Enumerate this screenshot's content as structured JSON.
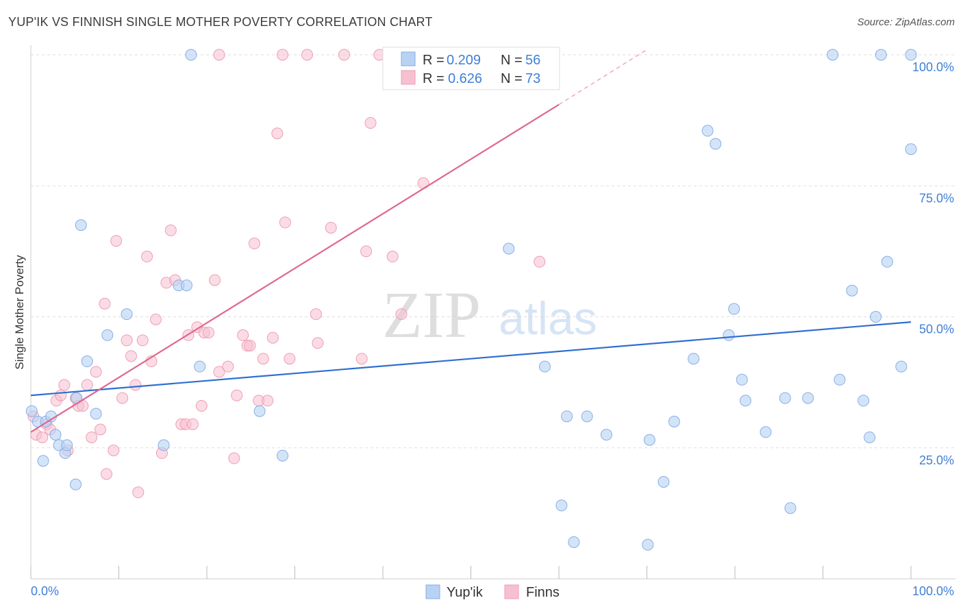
{
  "header": {
    "title": "YUP'IK VS FINNISH SINGLE MOTHER POVERTY CORRELATION CHART",
    "source": "Source: ZipAtlas.com"
  },
  "watermark": {
    "zip": "ZIP",
    "atlas": "atlas"
  },
  "colors": {
    "blue_fill": "#b7d2f3",
    "blue_stroke": "#86aee6",
    "blue_line": "#2f6fcf",
    "pink_fill": "#f7c0d0",
    "pink_stroke": "#ee9db5",
    "pink_line": "#e0678f",
    "axis_text": "#3f7fd6",
    "grid": "#dddddd"
  },
  "legend_top": {
    "rows": [
      {
        "r_label": "R =",
        "r_value": "0.209",
        "n_label": "N =",
        "n_value": "56"
      },
      {
        "r_label": "R =",
        "r_value": "0.626",
        "n_label": "N =",
        "n_value": "73"
      }
    ]
  },
  "chart_data": {
    "type": "scatter",
    "title": "YUP'IK VS FINNISH SINGLE MOTHER POVERTY CORRELATION CHART",
    "xlabel": "",
    "ylabel": "Single Mother Poverty",
    "xlim": [
      0,
      100
    ],
    "ylim": [
      0,
      100
    ],
    "x_tick_labels": [
      "0.0%",
      "100.0%"
    ],
    "y_ticks": [
      25,
      50,
      75,
      100
    ],
    "y_tick_labels": [
      "25.0%",
      "50.0%",
      "75.0%",
      "100.0%"
    ],
    "grid": true,
    "legend_position": "bottom",
    "series": [
      {
        "name": "Yup'ik",
        "color": "#b7d2f3",
        "r": 0.209,
        "n": 56,
        "trend": {
          "x": [
            0,
            100
          ],
          "y": [
            35.0,
            49.0
          ]
        },
        "points": [
          [
            0.1,
            32.0
          ],
          [
            0.8,
            30.0
          ],
          [
            1.4,
            22.5
          ],
          [
            1.7,
            30.0
          ],
          [
            2.3,
            31.0
          ],
          [
            2.8,
            27.5
          ],
          [
            3.2,
            25.5
          ],
          [
            3.9,
            24.0
          ],
          [
            4.1,
            25.5
          ],
          [
            5.1,
            18.0
          ],
          [
            5.2,
            34.5
          ],
          [
            5.7,
            67.5
          ],
          [
            6.4,
            41.5
          ],
          [
            7.4,
            31.5
          ],
          [
            8.7,
            46.5
          ],
          [
            10.9,
            50.5
          ],
          [
            15.1,
            25.5
          ],
          [
            16.8,
            56.0
          ],
          [
            17.7,
            56.0
          ],
          [
            18.2,
            100.0
          ],
          [
            19.2,
            40.5
          ],
          [
            26.0,
            32.0
          ],
          [
            28.6,
            23.5
          ],
          [
            54.3,
            63.0
          ],
          [
            58.4,
            40.5
          ],
          [
            60.3,
            14.0
          ],
          [
            60.9,
            31.0
          ],
          [
            61.7,
            7.0
          ],
          [
            63.2,
            31.0
          ],
          [
            65.4,
            27.5
          ],
          [
            70.1,
            6.5
          ],
          [
            70.3,
            26.5
          ],
          [
            71.9,
            18.5
          ],
          [
            73.1,
            30.0
          ],
          [
            75.3,
            42.0
          ],
          [
            76.9,
            85.5
          ],
          [
            77.8,
            83.0
          ],
          [
            79.3,
            46.5
          ],
          [
            79.9,
            51.5
          ],
          [
            80.8,
            38.0
          ],
          [
            81.2,
            34.0
          ],
          [
            83.5,
            28.0
          ],
          [
            85.7,
            34.5
          ],
          [
            86.3,
            13.5
          ],
          [
            88.3,
            34.5
          ],
          [
            91.1,
            100.0
          ],
          [
            91.9,
            38.0
          ],
          [
            93.3,
            55.0
          ],
          [
            94.6,
            34.0
          ],
          [
            95.3,
            27.0
          ],
          [
            96.0,
            50.0
          ],
          [
            96.6,
            100.0
          ],
          [
            97.3,
            60.5
          ],
          [
            98.9,
            40.5
          ],
          [
            100.0,
            82.0
          ],
          [
            100.0,
            100.0
          ]
        ]
      },
      {
        "name": "Finns",
        "color": "#f7c0d0",
        "r": 0.626,
        "n": 73,
        "trend": {
          "x": [
            0,
            60,
            70
          ],
          "y": [
            28.0,
            90.5,
            101.0
          ]
        },
        "points": [
          [
            0.3,
            31.0
          ],
          [
            0.6,
            27.5
          ],
          [
            1.3,
            27.0
          ],
          [
            1.8,
            29.5
          ],
          [
            2.2,
            28.5
          ],
          [
            2.9,
            34.0
          ],
          [
            3.4,
            35.0
          ],
          [
            3.8,
            37.0
          ],
          [
            4.2,
            24.5
          ],
          [
            5.1,
            34.5
          ],
          [
            5.4,
            33.0
          ],
          [
            5.9,
            33.0
          ],
          [
            6.4,
            37.0
          ],
          [
            6.9,
            27.0
          ],
          [
            7.4,
            39.5
          ],
          [
            7.9,
            28.5
          ],
          [
            8.4,
            52.5
          ],
          [
            8.6,
            20.0
          ],
          [
            9.4,
            24.5
          ],
          [
            9.7,
            64.5
          ],
          [
            10.4,
            34.5
          ],
          [
            10.9,
            45.5
          ],
          [
            11.4,
            42.5
          ],
          [
            11.9,
            37.0
          ],
          [
            12.2,
            16.5
          ],
          [
            12.7,
            45.5
          ],
          [
            13.2,
            61.5
          ],
          [
            13.7,
            41.5
          ],
          [
            14.2,
            49.5
          ],
          [
            14.9,
            24.0
          ],
          [
            15.4,
            56.5
          ],
          [
            15.9,
            66.5
          ],
          [
            16.4,
            57.0
          ],
          [
            17.1,
            29.5
          ],
          [
            17.6,
            29.5
          ],
          [
            17.9,
            46.5
          ],
          [
            18.4,
            29.5
          ],
          [
            18.9,
            48.0
          ],
          [
            19.4,
            33.0
          ],
          [
            19.7,
            47.0
          ],
          [
            20.2,
            47.0
          ],
          [
            20.9,
            57.0
          ],
          [
            21.4,
            39.5
          ],
          [
            22.4,
            40.5
          ],
          [
            23.1,
            23.0
          ],
          [
            23.4,
            35.0
          ],
          [
            24.1,
            46.5
          ],
          [
            24.6,
            44.5
          ],
          [
            24.9,
            44.5
          ],
          [
            25.4,
            64.0
          ],
          [
            25.9,
            34.0
          ],
          [
            26.4,
            42.0
          ],
          [
            26.9,
            34.0
          ],
          [
            27.5,
            46.0
          ],
          [
            28.0,
            85.0
          ],
          [
            28.6,
            100.0
          ],
          [
            28.9,
            68.0
          ],
          [
            29.4,
            42.0
          ],
          [
            31.4,
            100.0
          ],
          [
            32.4,
            50.5
          ],
          [
            32.6,
            45.0
          ],
          [
            34.1,
            67.0
          ],
          [
            35.6,
            100.0
          ],
          [
            37.6,
            42.0
          ],
          [
            38.1,
            62.5
          ],
          [
            38.6,
            87.0
          ],
          [
            39.6,
            100.0
          ],
          [
            41.1,
            61.5
          ],
          [
            42.1,
            50.5
          ],
          [
            44.6,
            75.5
          ],
          [
            55.1,
            100.0
          ],
          [
            57.8,
            60.5
          ],
          [
            21.4,
            100.0
          ]
        ]
      }
    ]
  }
}
